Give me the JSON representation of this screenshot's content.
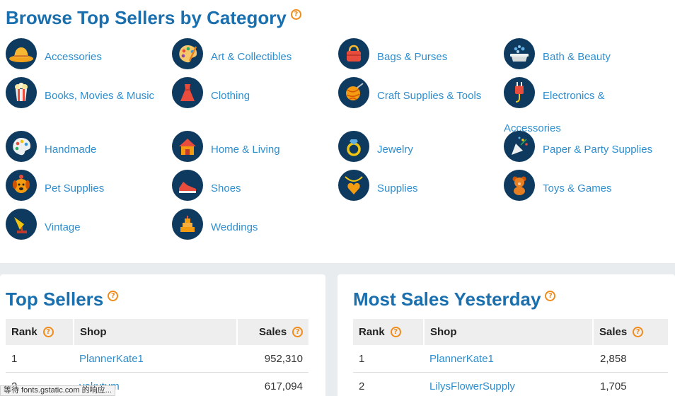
{
  "page_title": "Browse Top Sellers by Category",
  "help_glyph": "?",
  "categories": [
    {
      "label": "Accessories",
      "icon": "hat-icon"
    },
    {
      "label": "Art & Collectibles",
      "icon": "palette-icon"
    },
    {
      "label": "Bags & Purses",
      "icon": "handbag-icon"
    },
    {
      "label": "Bath & Beauty",
      "icon": "bathtub-icon"
    },
    {
      "label": "Books, Movies & Music",
      "icon": "popcorn-icon"
    },
    {
      "label": "Clothing",
      "icon": "dress-icon"
    },
    {
      "label": "Craft Supplies & Tools",
      "icon": "yarn-ball-icon"
    },
    {
      "label_line1": "Electronics &",
      "label_line2": "Accessories",
      "icon": "plug-icon"
    },
    {
      "label": "Handmade",
      "icon": "paint-palette-icon"
    },
    {
      "label": "Home & Living",
      "icon": "house-icon"
    },
    {
      "label": "Jewelry",
      "icon": "ring-icon"
    },
    {
      "label": "Paper & Party Supplies",
      "icon": "party-popper-icon"
    },
    {
      "label": "Pet Supplies",
      "icon": "dog-icon"
    },
    {
      "label": "Shoes",
      "icon": "sneaker-icon"
    },
    {
      "label": "Supplies",
      "icon": "pendant-icon"
    },
    {
      "label": "Toys & Games",
      "icon": "teddy-bear-icon"
    },
    {
      "label": "Vintage",
      "icon": "gramophone-icon"
    },
    {
      "label": "Weddings",
      "icon": "wedding-cake-icon"
    }
  ],
  "top_sellers": {
    "title": "Top Sellers",
    "columns": {
      "rank": "Rank",
      "shop": "Shop",
      "sales": "Sales"
    },
    "rows": [
      {
        "rank": "1",
        "shop": "PlannerKate1",
        "sales": "952,310"
      },
      {
        "rank": "2",
        "shop": "yakutum",
        "sales": "617,094"
      }
    ]
  },
  "most_sales_yesterday": {
    "title": "Most Sales Yesterday",
    "columns": {
      "rank": "Rank",
      "shop": "Shop",
      "sales": "Sales"
    },
    "rows": [
      {
        "rank": "1",
        "shop": "PlannerKate1",
        "sales": "2,858"
      },
      {
        "rank": "2",
        "shop": "LilysFlowerSupply",
        "sales": "1,705"
      }
    ]
  },
  "status_bar": "等待 fonts.gstatic.com 的响应...",
  "colors": {
    "title": "#1a6fae",
    "link": "#2e8ece",
    "icon_bg": "#0d3a5e",
    "help": "#f08c1c"
  }
}
